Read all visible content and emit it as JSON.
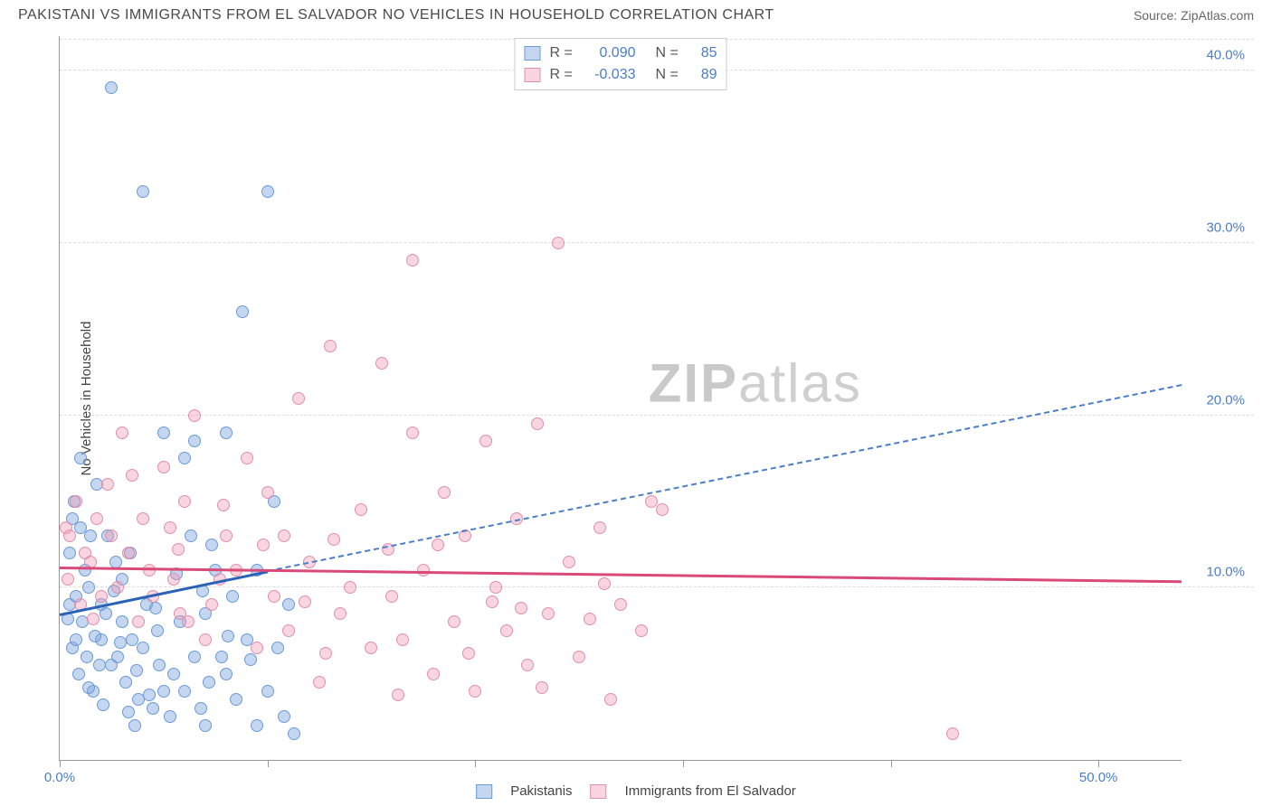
{
  "title": "PAKISTANI VS IMMIGRANTS FROM EL SALVADOR NO VEHICLES IN HOUSEHOLD CORRELATION CHART",
  "source": "Source: ZipAtlas.com",
  "ylabel": "No Vehicles in Household",
  "watermark_a": "ZIP",
  "watermark_b": "atlas",
  "chart": {
    "type": "scatter",
    "xlim": [
      0,
      54
    ],
    "ylim": [
      0,
      42
    ],
    "xticks": [
      0,
      10,
      20,
      30,
      40,
      50
    ],
    "xtick_labels": [
      "0.0%",
      "",
      "",
      "",
      "",
      "50.0%"
    ],
    "yticks": [
      10,
      20,
      30,
      40
    ],
    "ytick_labels": [
      "10.0%",
      "20.0%",
      "30.0%",
      "40.0%"
    ],
    "grid_color": "#dddddd",
    "axis_color": "#999999",
    "background": "#ffffff",
    "tick_label_color": "#4a7ec9"
  },
  "series": [
    {
      "name": "Pakistanis",
      "legend_id": "pakistanis",
      "fill": "rgba(127,167,222,0.45)",
      "stroke": "#6b9ad6",
      "R": "0.090",
      "N": "85",
      "marker_size": 14,
      "trend_solid": {
        "x1": 0,
        "y1": 8.5,
        "x2": 10,
        "y2": 11,
        "color": "#2b62b5",
        "width": 2.5
      },
      "trend_dashed": {
        "x1": 10,
        "y1": 11,
        "x2": 54,
        "y2": 21.8,
        "color": "#4a7ec9",
        "width": 2
      },
      "points": [
        [
          0.5,
          9
        ],
        [
          0.5,
          12
        ],
        [
          0.6,
          14
        ],
        [
          0.7,
          15
        ],
        [
          0.8,
          9.5
        ],
        [
          0.9,
          5
        ],
        [
          1,
          17.5
        ],
        [
          1,
          13.5
        ],
        [
          1.1,
          8
        ],
        [
          1.2,
          11
        ],
        [
          1.3,
          6
        ],
        [
          1.4,
          10
        ],
        [
          1.5,
          13
        ],
        [
          1.6,
          4
        ],
        [
          1.8,
          16
        ],
        [
          2,
          7
        ],
        [
          2,
          9
        ],
        [
          2.2,
          8.5
        ],
        [
          2.3,
          13
        ],
        [
          2.5,
          5.5
        ],
        [
          2.5,
          39
        ],
        [
          2.7,
          11.5
        ],
        [
          2.8,
          6
        ],
        [
          3,
          8
        ],
        [
          3,
          10.5
        ],
        [
          3.2,
          4.5
        ],
        [
          3.4,
          12
        ],
        [
          3.5,
          7
        ],
        [
          3.6,
          2
        ],
        [
          3.8,
          3.5
        ],
        [
          4,
          33
        ],
        [
          4,
          6.5
        ],
        [
          4.2,
          9
        ],
        [
          4.5,
          3
        ],
        [
          4.7,
          7.5
        ],
        [
          5,
          4
        ],
        [
          5,
          19
        ],
        [
          5.3,
          2.5
        ],
        [
          5.5,
          5
        ],
        [
          5.8,
          8
        ],
        [
          6,
          17.5
        ],
        [
          6,
          4
        ],
        [
          6.3,
          13
        ],
        [
          6.5,
          18.5
        ],
        [
          6.8,
          3
        ],
        [
          7,
          8.5
        ],
        [
          7,
          2
        ],
        [
          7.3,
          12.5
        ],
        [
          7.5,
          11
        ],
        [
          7.8,
          6
        ],
        [
          8,
          19
        ],
        [
          8,
          5
        ],
        [
          8.3,
          9.5
        ],
        [
          8.5,
          3.5
        ],
        [
          8.8,
          26
        ],
        [
          9,
          7
        ],
        [
          9.5,
          11
        ],
        [
          9.5,
          2
        ],
        [
          10,
          33
        ],
        [
          10,
          4
        ],
        [
          10.3,
          15
        ],
        [
          10.5,
          6.5
        ],
        [
          10.8,
          2.5
        ],
        [
          11,
          9
        ],
        [
          11.3,
          1.5
        ],
        [
          6.5,
          6
        ],
        [
          7.2,
          4.5
        ],
        [
          4.8,
          5.5
        ],
        [
          3.3,
          2.8
        ],
        [
          2.1,
          3.2
        ],
        [
          1.7,
          7.2
        ],
        [
          2.6,
          9.8
        ],
        [
          5.6,
          10.8
        ],
        [
          9.2,
          5.8
        ],
        [
          8.1,
          7.2
        ],
        [
          6.9,
          9.8
        ],
        [
          4.3,
          3.8
        ],
        [
          3.7,
          5.2
        ],
        [
          2.9,
          6.8
        ],
        [
          1.4,
          4.2
        ],
        [
          0.6,
          6.5
        ],
        [
          0.4,
          8.2
        ],
        [
          0.8,
          7.0
        ],
        [
          1.9,
          5.5
        ],
        [
          4.6,
          8.8
        ]
      ]
    },
    {
      "name": "Immigrants from El Salvador",
      "legend_id": "el-salvador",
      "fill": "rgba(240,150,180,0.40)",
      "stroke": "#e08fab",
      "R": "-0.033",
      "N": "89",
      "marker_size": 14,
      "trend_solid": {
        "x1": 0,
        "y1": 11.2,
        "x2": 54,
        "y2": 10.4,
        "color": "#d94a78",
        "width": 2.5
      },
      "points": [
        [
          0.3,
          13.5
        ],
        [
          0.5,
          13
        ],
        [
          0.8,
          15
        ],
        [
          1,
          9
        ],
        [
          1.2,
          12
        ],
        [
          1.5,
          11.5
        ],
        [
          1.8,
          14
        ],
        [
          2,
          9.5
        ],
        [
          2.3,
          16
        ],
        [
          2.5,
          13
        ],
        [
          2.8,
          10
        ],
        [
          3,
          19
        ],
        [
          3.3,
          12
        ],
        [
          3.5,
          16.5
        ],
        [
          3.8,
          8
        ],
        [
          4,
          14
        ],
        [
          4.3,
          11
        ],
        [
          4.5,
          9.5
        ],
        [
          5,
          17
        ],
        [
          5.3,
          13.5
        ],
        [
          5.5,
          10.5
        ],
        [
          5.8,
          8.5
        ],
        [
          6,
          15
        ],
        [
          6.5,
          20
        ],
        [
          7,
          7
        ],
        [
          7.3,
          9
        ],
        [
          7.7,
          10.5
        ],
        [
          8,
          13
        ],
        [
          8.5,
          11
        ],
        [
          9,
          17.5
        ],
        [
          9.5,
          6.5
        ],
        [
          10,
          15.5
        ],
        [
          10.3,
          9.5
        ],
        [
          10.8,
          13
        ],
        [
          11,
          7.5
        ],
        [
          11.5,
          21
        ],
        [
          12,
          11.5
        ],
        [
          12.5,
          4.5
        ],
        [
          13,
          24
        ],
        [
          13.5,
          8.5
        ],
        [
          14,
          10
        ],
        [
          14.5,
          14.5
        ],
        [
          15,
          6.5
        ],
        [
          15.5,
          23
        ],
        [
          16,
          9.5
        ],
        [
          16.5,
          7
        ],
        [
          17,
          19
        ],
        [
          17,
          29
        ],
        [
          17.5,
          11
        ],
        [
          18,
          5
        ],
        [
          18.5,
          15.5
        ],
        [
          19,
          8
        ],
        [
          19.5,
          13
        ],
        [
          20,
          4
        ],
        [
          20.5,
          18.5
        ],
        [
          21,
          10
        ],
        [
          21.5,
          7.5
        ],
        [
          22,
          14
        ],
        [
          22.5,
          5.5
        ],
        [
          23,
          19.5
        ],
        [
          23.5,
          8.5
        ],
        [
          24,
          30
        ],
        [
          24.5,
          11.5
        ],
        [
          25,
          6
        ],
        [
          26,
          13.5
        ],
        [
          26.5,
          3.5
        ],
        [
          27,
          9
        ],
        [
          28,
          7.5
        ],
        [
          28.5,
          15
        ],
        [
          29,
          14.5
        ],
        [
          5.7,
          12.2
        ],
        [
          7.9,
          14.8
        ],
        [
          9.8,
          12.5
        ],
        [
          11.8,
          9.2
        ],
        [
          13.2,
          12.8
        ],
        [
          15.8,
          12.2
        ],
        [
          18.2,
          12.5
        ],
        [
          20.8,
          9.2
        ],
        [
          23.2,
          4.2
        ],
        [
          26.2,
          10.2
        ],
        [
          16.3,
          3.8
        ],
        [
          19.7,
          6.2
        ],
        [
          22.2,
          8.8
        ],
        [
          25.5,
          8.2
        ],
        [
          43,
          1.5
        ],
        [
          0.4,
          10.5
        ],
        [
          1.6,
          8.2
        ],
        [
          6.2,
          8.0
        ],
        [
          12.8,
          6.2
        ]
      ]
    }
  ],
  "legend_top": {
    "r_label": "R =",
    "n_label": "N ="
  },
  "legend_bottom_labels": [
    "Pakistanis",
    "Immigrants from El Salvador"
  ]
}
